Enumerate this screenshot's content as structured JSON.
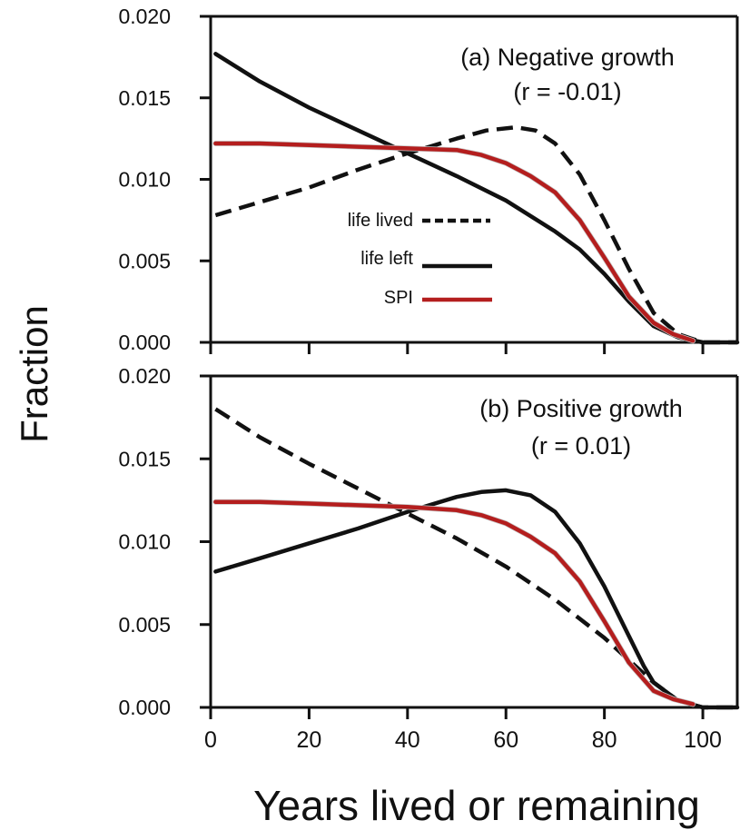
{
  "chart_data": [
    {
      "type": "line",
      "title": "(a) Negative growth",
      "subtitle": "(r = -0.01)",
      "xlim": [
        0,
        107
      ],
      "ylim": [
        0,
        0.02
      ],
      "x_ticks": [
        0,
        20,
        40,
        60,
        80,
        100
      ],
      "y_ticks": [
        "0.000",
        "0.005",
        "0.010",
        "0.015",
        "0.020"
      ],
      "legend": {
        "placement": "center-left",
        "entries": [
          {
            "label": "life lived",
            "style": "dashed",
            "color": "#111111"
          },
          {
            "label": "life left",
            "style": "solid",
            "color": "#111111"
          },
          {
            "label": "SPI",
            "style": "solid",
            "color": "#b41e1e"
          }
        ]
      },
      "series": [
        {
          "name": "life lived",
          "style": "dashed",
          "color": "#111111",
          "x": [
            1,
            10,
            20,
            30,
            40,
            50,
            56,
            62,
            66,
            70,
            75,
            80,
            85,
            90,
            95,
            100,
            107
          ],
          "y": [
            0.0078,
            0.0086,
            0.0095,
            0.0106,
            0.0116,
            0.0125,
            0.013,
            0.0132,
            0.013,
            0.0122,
            0.0103,
            0.0075,
            0.0045,
            0.0018,
            0.0005,
            0.0,
            0.0
          ]
        },
        {
          "name": "life left",
          "style": "solid",
          "color": "#111111",
          "x": [
            1,
            10,
            20,
            30,
            40,
            50,
            60,
            70,
            75,
            80,
            85,
            90,
            95,
            100,
            107
          ],
          "y": [
            0.0177,
            0.016,
            0.0144,
            0.013,
            0.0116,
            0.0102,
            0.0087,
            0.0068,
            0.0057,
            0.0042,
            0.0025,
            0.001,
            0.0003,
            0.0,
            0.0
          ]
        },
        {
          "name": "SPI",
          "style": "solid",
          "color": "#b41e1e",
          "x": [
            1,
            10,
            20,
            30,
            40,
            50,
            55,
            60,
            65,
            70,
            75,
            80,
            85,
            90,
            94,
            98
          ],
          "y": [
            0.0122,
            0.0122,
            0.0121,
            0.012,
            0.0119,
            0.0118,
            0.0115,
            0.011,
            0.0102,
            0.0092,
            0.0075,
            0.0052,
            0.0028,
            0.0012,
            0.0005,
            0.0001
          ]
        }
      ]
    },
    {
      "type": "line",
      "title": "(b) Positive growth",
      "subtitle": "(r = 0.01)",
      "xlim": [
        0,
        107
      ],
      "ylim": [
        0,
        0.02
      ],
      "x_ticks": [
        0,
        20,
        40,
        60,
        80,
        100
      ],
      "x_tick_labels": [
        "0",
        "20",
        "40",
        "60",
        "80",
        "100"
      ],
      "y_ticks": [
        "0.000",
        "0.005",
        "0.010",
        "0.015",
        "0.020"
      ],
      "xlabel": "Years lived or remaining",
      "series": [
        {
          "name": "life lived",
          "style": "dashed",
          "color": "#111111",
          "x": [
            1,
            10,
            20,
            30,
            40,
            50,
            60,
            70,
            80,
            90,
            95,
            100,
            107
          ],
          "y": [
            0.018,
            0.0163,
            0.0147,
            0.0132,
            0.0117,
            0.0102,
            0.0085,
            0.0065,
            0.0042,
            0.0015,
            0.0004,
            0.0,
            0.0
          ]
        },
        {
          "name": "life left",
          "style": "solid",
          "color": "#111111",
          "x": [
            1,
            10,
            20,
            30,
            40,
            50,
            55,
            60,
            65,
            70,
            75,
            80,
            85,
            88,
            90,
            95,
            100,
            107
          ],
          "y": [
            0.0082,
            0.009,
            0.0099,
            0.0108,
            0.0118,
            0.0127,
            0.013,
            0.0131,
            0.0128,
            0.0118,
            0.0099,
            0.0073,
            0.0043,
            0.0025,
            0.0015,
            0.0004,
            0.0,
            0.0
          ]
        },
        {
          "name": "SPI",
          "style": "solid",
          "color": "#b41e1e",
          "x": [
            1,
            10,
            20,
            30,
            40,
            50,
            55,
            60,
            65,
            70,
            75,
            80,
            85,
            90,
            94,
            98
          ],
          "y": [
            0.0124,
            0.0124,
            0.0123,
            0.0122,
            0.0121,
            0.0119,
            0.0116,
            0.0111,
            0.0103,
            0.0093,
            0.0076,
            0.0052,
            0.0027,
            0.001,
            0.0005,
            0.0002
          ]
        }
      ]
    }
  ],
  "ylabel": "Fraction"
}
